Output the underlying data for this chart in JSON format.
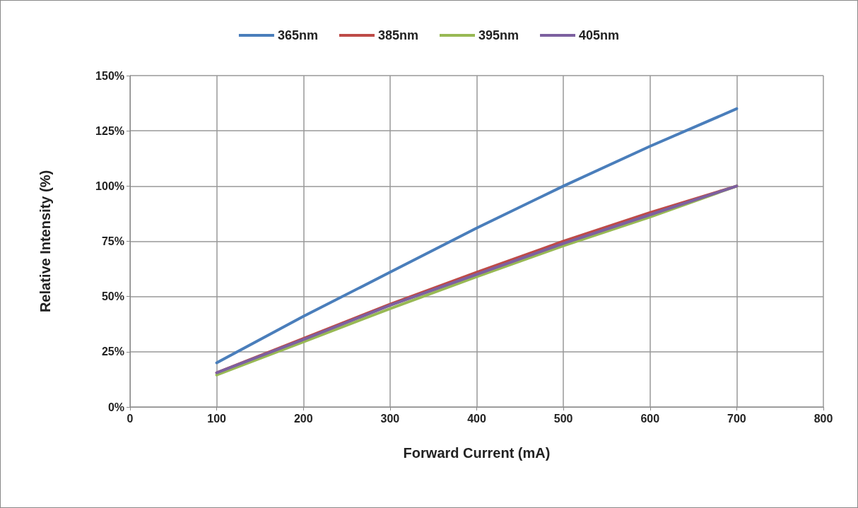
{
  "chart_data": {
    "type": "line",
    "xlabel": "Forward Current (mA)",
    "ylabel": "Relative Intensity (%)",
    "x": [
      100,
      200,
      300,
      400,
      500,
      600,
      700
    ],
    "series": [
      {
        "name": "365nm",
        "color": "#4a7ebb",
        "values": [
          20,
          41,
          61,
          81,
          100,
          118,
          135
        ]
      },
      {
        "name": "385nm",
        "color": "#be4b48",
        "values": [
          15.5,
          31,
          46.5,
          61,
          75,
          88,
          100
        ]
      },
      {
        "name": "395nm",
        "color": "#98b954",
        "values": [
          14.5,
          29.5,
          44.5,
          59,
          73,
          86,
          100
        ]
      },
      {
        "name": "405nm",
        "color": "#7d60a0",
        "values": [
          15.5,
          30.5,
          46,
          60,
          74,
          87,
          100
        ]
      }
    ],
    "xlim": [
      0,
      800
    ],
    "xticks": [
      0,
      100,
      200,
      300,
      400,
      500,
      600,
      700,
      800
    ],
    "ylim": [
      0,
      150
    ],
    "yticks": [
      {
        "value": 0,
        "label": "0%"
      },
      {
        "value": 25,
        "label": "25%"
      },
      {
        "value": 50,
        "label": "50%"
      },
      {
        "value": 75,
        "label": "75%"
      },
      {
        "value": 100,
        "label": "100%"
      },
      {
        "value": 125,
        "label": "125%"
      },
      {
        "value": 150,
        "label": "150%"
      }
    ],
    "grid": true,
    "legend": "top",
    "marker": "none",
    "line_style": "solid"
  }
}
